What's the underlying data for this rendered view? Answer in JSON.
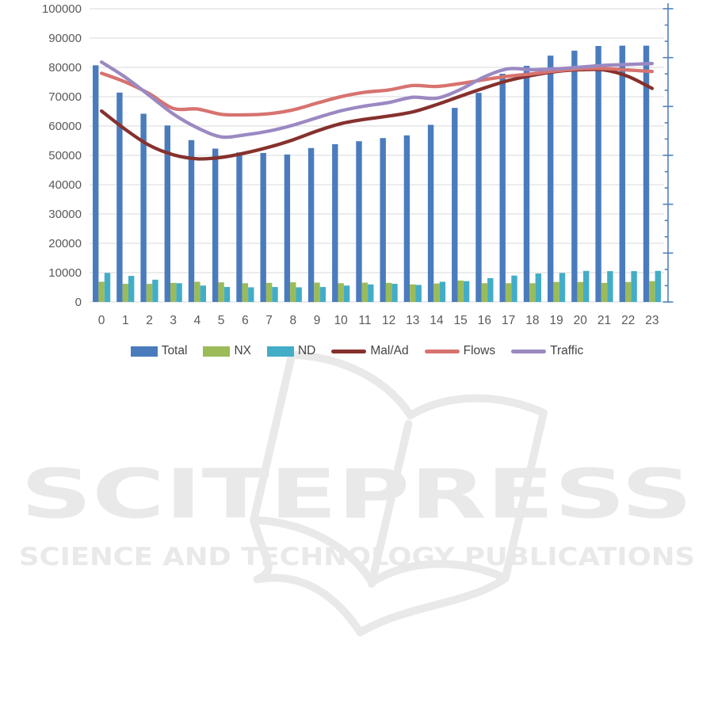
{
  "watermark": {
    "title": "SCITEPRESS",
    "subtitle": "SCIENCE AND TECHNOLOGY PUBLICATIONS",
    "icon": "open-book-icon",
    "color": "#E9E9E9"
  },
  "chart_data": {
    "type": "combo-bar-line",
    "title": "",
    "grid": true,
    "legend_position": "bottom",
    "axis_text_color": "#595959",
    "gridline_color": "#D9D9D9",
    "x": [
      "0",
      "1",
      "2",
      "3",
      "4",
      "5",
      "6",
      "7",
      "8",
      "9",
      "10",
      "11",
      "12",
      "13",
      "14",
      "15",
      "16",
      "17",
      "18",
      "19",
      "20",
      "21",
      "22",
      "23"
    ],
    "y_axis": {
      "min": 0,
      "max": 100000,
      "step": 10000,
      "tick_labels": [
        "0",
        "10000",
        "20000",
        "30000",
        "40000",
        "50000",
        "60000",
        "70000",
        "80000",
        "90000",
        "100000"
      ]
    },
    "secondary_y_axis": {
      "tick_labels_visible": false,
      "major_divisions": 6,
      "minor_ticks_per_major": 2,
      "color": "#4F81BD"
    },
    "series": [
      {
        "name": "Total",
        "type": "bar",
        "color": "#4A7CBD",
        "values": [
          80700,
          71400,
          64200,
          60200,
          55200,
          52300,
          51000,
          50800,
          50300,
          52500,
          53800,
          54800,
          55900,
          56800,
          60400,
          66200,
          71300,
          77800,
          80500,
          84000,
          85700,
          87300,
          87400,
          87400
        ]
      },
      {
        "name": "NX",
        "type": "bar",
        "color": "#9BBB59",
        "values": [
          6900,
          6200,
          6200,
          6500,
          6900,
          6700,
          6400,
          6500,
          6700,
          6600,
          6400,
          6600,
          6500,
          6000,
          6300,
          7300,
          6400,
          6400,
          6400,
          6800,
          6800,
          6500,
          6800,
          7100
        ]
      },
      {
        "name": "ND",
        "type": "bar",
        "color": "#43ADC8",
        "values": [
          9900,
          8900,
          7600,
          6400,
          5600,
          5100,
          5000,
          5100,
          5000,
          5100,
          5600,
          6000,
          6200,
          5800,
          6900,
          7100,
          8100,
          9000,
          9700,
          9900,
          10600,
          10500,
          10500,
          10600
        ]
      },
      {
        "name": "Mal/Ad",
        "type": "line",
        "color": "#86312D",
        "values": [
          65100,
          58800,
          53400,
          50200,
          48800,
          49300,
          50800,
          52800,
          55300,
          58300,
          60800,
          62300,
          63400,
          64800,
          67300,
          70200,
          73000,
          75500,
          77300,
          78600,
          79200,
          79100,
          76900,
          72800
        ]
      },
      {
        "name": "Flows",
        "type": "line",
        "color": "#D7736F",
        "values": [
          78000,
          75000,
          71000,
          66000,
          65800,
          64000,
          63800,
          64200,
          65500,
          67800,
          70000,
          71500,
          72300,
          73800,
          73500,
          74500,
          75800,
          77000,
          77800,
          78800,
          79500,
          79600,
          79100,
          78600
        ]
      },
      {
        "name": "Traffic",
        "type": "line",
        "color": "#9B89C2",
        "values": [
          81800,
          76600,
          70400,
          64100,
          59400,
          56300,
          57000,
          58300,
          60300,
          62800,
          65200,
          66800,
          68000,
          69800,
          69500,
          72500,
          76800,
          79500,
          79200,
          79500,
          80100,
          80700,
          81000,
          81300
        ]
      }
    ]
  }
}
